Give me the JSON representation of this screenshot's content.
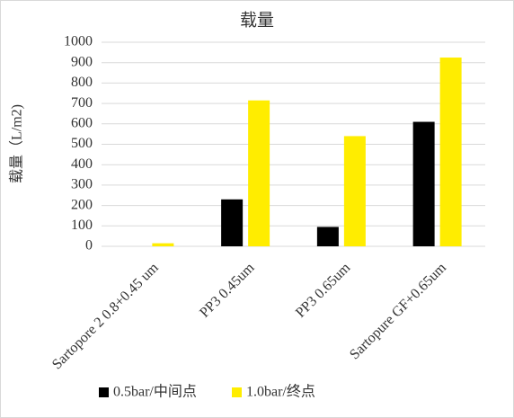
{
  "chart_data": {
    "type": "bar",
    "title": "载量",
    "y_label": "载量（L/m2)",
    "categories": [
      "Sartopore 2  0.8+0.45 um",
      "PP3 0.45um",
      "PP3 0.65um",
      "Sartopure GF+0.65um"
    ],
    "series": [
      {
        "name": "0.5bar/中间点",
        "color": "#000000",
        "values": [
          0,
          230,
          95,
          610
        ]
      },
      {
        "name": "1.0bar/终点",
        "color": "#ffed00",
        "values": [
          15,
          715,
          540,
          925
        ]
      }
    ],
    "ylim": [
      0,
      1000
    ],
    "yticks": [
      0,
      100,
      200,
      300,
      400,
      500,
      600,
      700,
      800,
      900,
      1000
    ],
    "grid": true
  }
}
